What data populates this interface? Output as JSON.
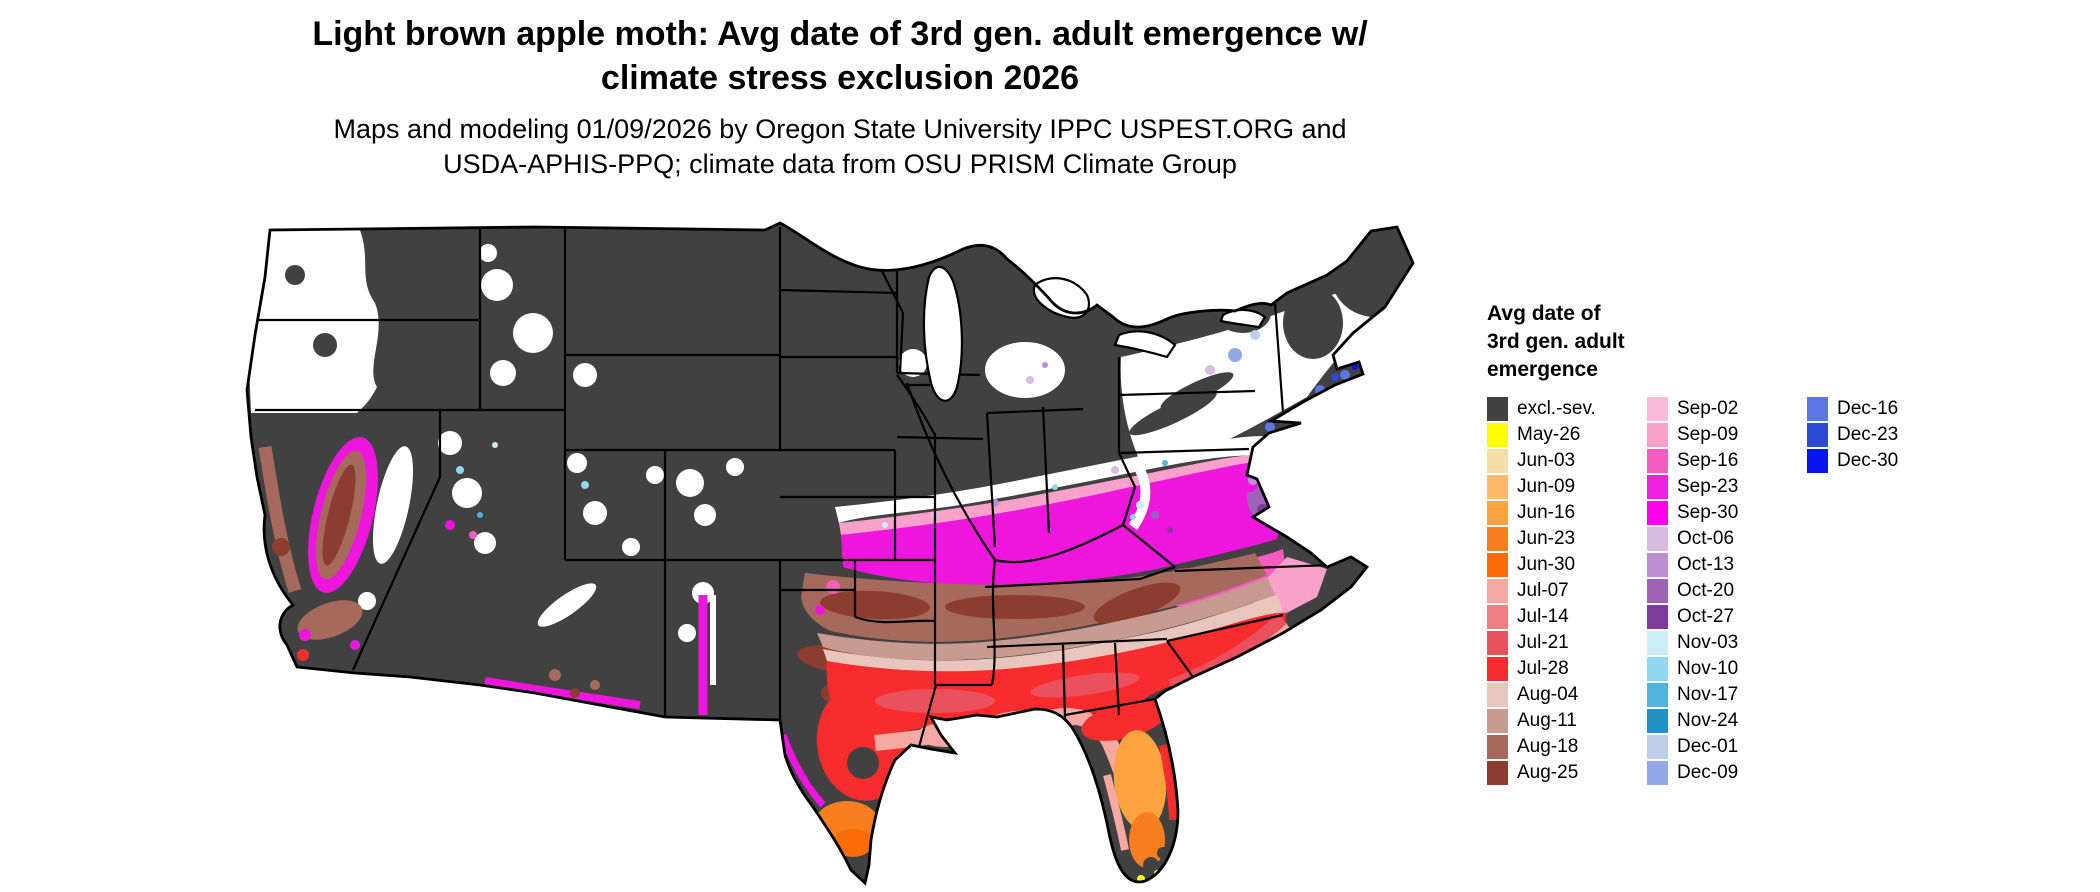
{
  "title": {
    "lines": [
      "Light brown apple moth: Avg date of 3rd gen. adult emergence w/",
      "climate stress exclusion 2026"
    ]
  },
  "subtitle": {
    "lines": [
      "Maps and modeling 01/09/2026 by Oregon State University IPPC USPEST.ORG and",
      "USDA-APHIS-PPQ; climate data from OSU PRISM Climate Group"
    ]
  },
  "legend": {
    "title_lines": [
      "Avg date of",
      "3rd gen. adult",
      "emergence"
    ],
    "columns": [
      {
        "items": [
          {
            "label": "excl.-sev.",
            "color": "#414141"
          },
          {
            "label": "May-26",
            "color": "#FFFF00"
          },
          {
            "label": "Jun-03",
            "color": "#F6DFA6"
          },
          {
            "label": "Jun-09",
            "color": "#FDBA6B"
          },
          {
            "label": "Jun-16",
            "color": "#FCA33F"
          },
          {
            "label": "Jun-23",
            "color": "#F97E1D"
          },
          {
            "label": "Jun-30",
            "color": "#FB6B07"
          },
          {
            "label": "Jul-07",
            "color": "#F5A9A2"
          },
          {
            "label": "Jul-14",
            "color": "#EF7F85"
          },
          {
            "label": "Jul-21",
            "color": "#EA505E"
          },
          {
            "label": "Jul-28",
            "color": "#F82C2C"
          },
          {
            "label": "Aug-04",
            "color": "#E9C6BD"
          },
          {
            "label": "Aug-11",
            "color": "#C79B92"
          },
          {
            "label": "Aug-18",
            "color": "#A66A5C"
          },
          {
            "label": "Aug-25",
            "color": "#8C3D30"
          }
        ]
      },
      {
        "items": [
          {
            "label": "Sep-02",
            "color": "#FBBCD9"
          },
          {
            "label": "Sep-09",
            "color": "#F9A0CB"
          },
          {
            "label": "Sep-16",
            "color": "#F45CBF"
          },
          {
            "label": "Sep-23",
            "color": "#EE22DD"
          },
          {
            "label": "Sep-30",
            "color": "#FF00EE"
          },
          {
            "label": "Oct-06",
            "color": "#D8BCE2"
          },
          {
            "label": "Oct-13",
            "color": "#BB8FD2"
          },
          {
            "label": "Oct-20",
            "color": "#9C63B8"
          },
          {
            "label": "Oct-27",
            "color": "#7D3C99"
          },
          {
            "label": "Nov-03",
            "color": "#C9EEF8"
          },
          {
            "label": "Nov-10",
            "color": "#90D7EF"
          },
          {
            "label": "Nov-17",
            "color": "#52B4DE"
          },
          {
            "label": "Nov-24",
            "color": "#2391C1"
          },
          {
            "label": "Dec-01",
            "color": "#BECEE8"
          },
          {
            "label": "Dec-09",
            "color": "#94A8E8"
          }
        ]
      },
      {
        "items": [
          {
            "label": "Dec-16",
            "color": "#5A77E3"
          },
          {
            "label": "Dec-23",
            "color": "#2C49D8"
          },
          {
            "label": "Dec-30",
            "color": "#0814F0"
          }
        ]
      }
    ]
  },
  "map": {
    "region": "Contiguous United States",
    "excluded_color": "#414141",
    "water_color": "#ffffff"
  }
}
